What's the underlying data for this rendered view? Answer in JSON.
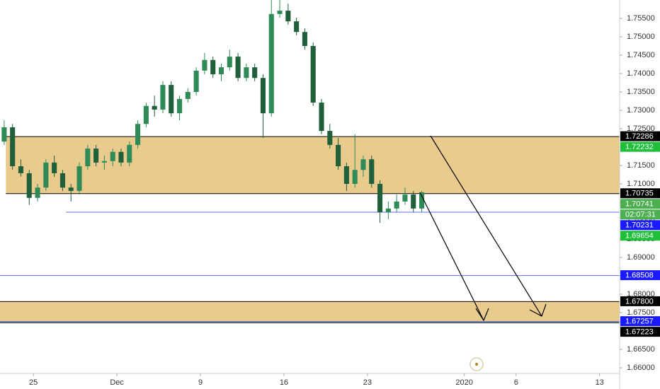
{
  "chart_data": {
    "type": "candlestick",
    "up_color": "#2e8b57",
    "down_color": "#1f5f3a",
    "x": [
      -1.75,
      -1.25,
      -0.75,
      -0.25,
      0.25,
      0.75,
      1.25,
      1.75,
      2.25,
      2.75,
      3.25,
      3.75,
      4.25,
      4.75,
      5.25,
      5.75,
      6.25,
      6.75,
      7.25,
      7.75,
      8.25,
      8.75,
      9.25,
      9.75,
      10.25,
      10.75,
      11.25,
      11.75,
      12.25,
      12.75,
      13.25,
      13.75,
      14.25,
      14.75,
      15.25,
      15.75,
      16.25,
      16.75,
      17.25,
      17.75,
      18.25,
      18.75,
      19.25,
      19.75,
      20.25,
      20.75,
      21.25,
      21.75,
      22.25,
      22.75,
      23.25
    ],
    "open": [
      1.7215,
      1.7254,
      1.7148,
      1.7129,
      1.7062,
      1.709,
      1.7158,
      1.7129,
      1.709,
      1.7081,
      1.7148,
      1.7196,
      1.7158,
      1.7162,
      1.7187,
      1.7158,
      1.7206,
      1.7263,
      1.7312,
      1.7302,
      1.7369,
      1.7292,
      1.7331,
      1.735,
      1.7408,
      1.7437,
      1.7398,
      1.7417,
      1.7446,
      1.7388,
      1.7417,
      1.7388,
      1.7292,
      1.7562,
      1.7571,
      1.7542,
      1.7513,
      1.7475,
      1.7321,
      1.7244,
      1.7206,
      1.7148,
      1.71,
      1.7138,
      1.7167,
      1.71,
      1.7023,
      1.7033,
      1.7052,
      1.7071,
      1.7033
    ],
    "high": [
      1.7273,
      1.7263,
      1.7167,
      1.7138,
      1.71,
      1.7167,
      1.7177,
      1.7138,
      1.71,
      1.7158,
      1.7206,
      1.7206,
      1.7177,
      1.7196,
      1.7196,
      1.7215,
      1.7273,
      1.7321,
      1.734,
      1.7379,
      1.7379,
      1.734,
      1.736,
      1.7417,
      1.7456,
      1.7446,
      1.7427,
      1.7465,
      1.7456,
      1.7427,
      1.7427,
      1.7398,
      1.76,
      1.76,
      1.759,
      1.7552,
      1.7523,
      1.7485,
      1.7331,
      1.7263,
      1.7225,
      1.7158,
      1.7235,
      1.7177,
      1.7177,
      1.711,
      1.7052,
      1.7071,
      1.709,
      1.7081,
      1.7081
    ],
    "low": [
      1.7206,
      1.7138,
      1.712,
      1.7043,
      1.7052,
      1.7081,
      1.7119,
      1.7081,
      1.7052,
      1.7071,
      1.7138,
      1.7148,
      1.7138,
      1.7148,
      1.7148,
      1.7148,
      1.7196,
      1.7254,
      1.7283,
      1.7292,
      1.7283,
      1.7273,
      1.7321,
      1.734,
      1.7398,
      1.7388,
      1.7379,
      1.7408,
      1.7379,
      1.7379,
      1.7379,
      1.7225,
      1.7283,
      1.7552,
      1.7533,
      1.7504,
      1.7465,
      1.7312,
      1.7235,
      1.7196,
      1.7138,
      1.7081,
      1.709,
      1.7119,
      1.709,
      1.6994,
      1.7004,
      1.7023,
      1.7043,
      1.7023,
      1.7023
    ],
    "close": [
      1.7254,
      1.7148,
      1.7129,
      1.7062,
      1.709,
      1.7158,
      1.7129,
      1.709,
      1.7081,
      1.7148,
      1.7196,
      1.7158,
      1.7162,
      1.7187,
      1.7158,
      1.7206,
      1.7263,
      1.7312,
      1.7302,
      1.7369,
      1.7292,
      1.7331,
      1.735,
      1.7408,
      1.7437,
      1.7398,
      1.7417,
      1.7446,
      1.7388,
      1.7417,
      1.7388,
      1.7292,
      1.7562,
      1.7571,
      1.7542,
      1.7513,
      1.7475,
      1.7321,
      1.7244,
      1.7206,
      1.7148,
      1.71,
      1.7138,
      1.7167,
      1.71,
      1.7023,
      1.7033,
      1.7052,
      1.7071,
      1.7033,
      1.7077
    ],
    "xlim": [
      -2,
      35.1
    ],
    "xticks": [
      {
        "value": 0,
        "label": "25"
      },
      {
        "value": 5,
        "label": "Dec"
      },
      {
        "value": 10,
        "label": "9"
      },
      {
        "value": 15,
        "label": "16"
      },
      {
        "value": 20,
        "label": "23"
      },
      {
        "value": 25.8,
        "label": "2020"
      },
      {
        "value": 28.9,
        "label": "6"
      },
      {
        "value": 33.9,
        "label": "13"
      }
    ],
    "ylim": [
      1.65846,
      1.76
    ],
    "yticks": [
      {
        "value": 1.66,
        "label": "1.66000"
      },
      {
        "value": 1.665,
        "label": "1.66500"
      },
      {
        "value": 1.67,
        "label": "1.67000"
      },
      {
        "value": 1.675,
        "label": "1.67500"
      },
      {
        "value": 1.68,
        "label": "1.68000"
      },
      {
        "value": 1.685,
        "label": "1.68500"
      },
      {
        "value": 1.69,
        "label": "1.69000"
      },
      {
        "value": 1.695,
        "label": "1.69500"
      },
      {
        "value": 1.7,
        "label": "1.70000"
      },
      {
        "value": 1.705,
        "label": "1.70500"
      },
      {
        "value": 1.71,
        "label": "1.71000"
      },
      {
        "value": 1.715,
        "label": "1.71500"
      },
      {
        "value": 1.72,
        "label": "1.72000"
      },
      {
        "value": 1.725,
        "label": "1.72500"
      },
      {
        "value": 1.73,
        "label": "1.73000"
      },
      {
        "value": 1.735,
        "label": "1.73500"
      },
      {
        "value": 1.74,
        "label": "1.74000"
      },
      {
        "value": 1.745,
        "label": "1.74500"
      },
      {
        "value": 1.75,
        "label": "1.75000"
      },
      {
        "value": 1.755,
        "label": "1.75500"
      }
    ],
    "grid": false,
    "zones": [
      {
        "from": 1.70735,
        "to": 1.72286,
        "start": -1.65,
        "color": "#e6c27a"
      },
      {
        "from": 1.67223,
        "to": 1.678,
        "start": -2,
        "color": "#e6c27a"
      }
    ],
    "lines": [
      {
        "value": 1.72286,
        "start": -1.65,
        "color": "#000000"
      },
      {
        "value": 1.70735,
        "start": -1.65,
        "color": "#000000"
      },
      {
        "value": 1.70231,
        "start": 1.95,
        "color": "#5b6cf0"
      },
      {
        "value": 1.68508,
        "start": -2,
        "color": "#5b6cf0"
      },
      {
        "value": 1.678,
        "start": -2,
        "color": "#000000"
      },
      {
        "value": 1.67257,
        "start": -2,
        "color": "#2962ff"
      },
      {
        "value": 1.67223,
        "start": -2,
        "color": "#000000"
      }
    ],
    "price_labels": [
      {
        "value": 1.72286,
        "label": "1.72286",
        "color": "#000000"
      },
      {
        "value": 1.72232,
        "label": "1.72232",
        "color": "#1fbf3a"
      },
      {
        "value": 1.70735,
        "label": "1.70735",
        "color": "#000000"
      },
      {
        "value": 1.70741,
        "label": "1.70741",
        "color": "#4caf50",
        "countdown": "02:07:31"
      },
      {
        "value": 1.70231,
        "label": "1.70231",
        "color": "#1a1aff"
      },
      {
        "value": 1.69654,
        "label": "1.69654",
        "color": "#1fbf3a"
      },
      {
        "value": 1.68508,
        "label": "1.68508",
        "color": "#1a1aff"
      },
      {
        "value": 1.678,
        "label": "1.67800",
        "color": "#000000"
      },
      {
        "value": 1.67257,
        "label": "1.67257",
        "color": "#1a1aff"
      },
      {
        "value": 1.67223,
        "label": "1.67223",
        "color": "#000000"
      }
    ]
  }
}
